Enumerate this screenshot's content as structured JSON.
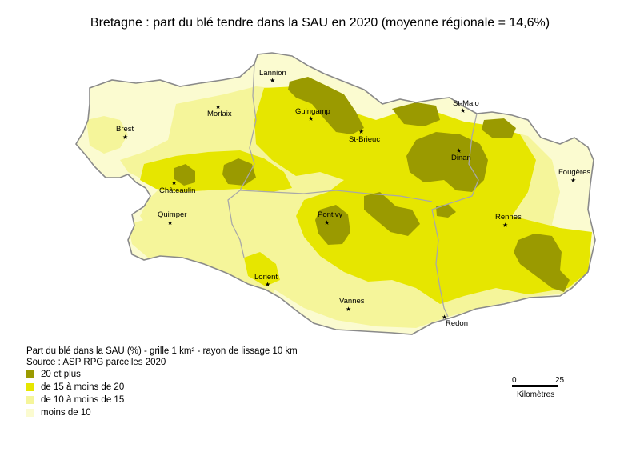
{
  "title": "Bretagne : part du blé tendre dans la SAU en 2020 (moyenne régionale = 14,6%)",
  "colors": {
    "class_1": "#9a9a00",
    "class_2": "#e6e600",
    "class_3": "#f5f59a",
    "class_4": "#fbfbd0",
    "coast": "#8a8a8a",
    "dept_border": "#a8a8a8"
  },
  "cities": [
    {
      "name": "Lannion"
    },
    {
      "name": "Morlaix"
    },
    {
      "name": "Guingamp"
    },
    {
      "name": "St-Brieuc"
    },
    {
      "name": "St-Malo"
    },
    {
      "name": "Dinan"
    },
    {
      "name": "Brest"
    },
    {
      "name": "Châteaulin"
    },
    {
      "name": "Quimper"
    },
    {
      "name": "Pontivy"
    },
    {
      "name": "Fougères"
    },
    {
      "name": "Rennes"
    },
    {
      "name": "Lorient"
    },
    {
      "name": "Vannes"
    },
    {
      "name": "Redon"
    }
  ],
  "legend": {
    "header_line1": "Part du blé dans la SAU (%) - grille 1 km² - rayon de lissage 10 km",
    "header_line2": "Source : ASP RPG parcelles 2020",
    "items": [
      {
        "label": "20 et plus",
        "color": "#9a9a00"
      },
      {
        "label": "de 15 à moins de 20",
        "color": "#e6e600"
      },
      {
        "label": "de 10 à moins de 15",
        "color": "#f5f59a"
      },
      {
        "label": "moins de 10",
        "color": "#fbfbd0"
      }
    ]
  },
  "scale": {
    "start": "0",
    "end": "25",
    "unit": "Kilomètres"
  }
}
